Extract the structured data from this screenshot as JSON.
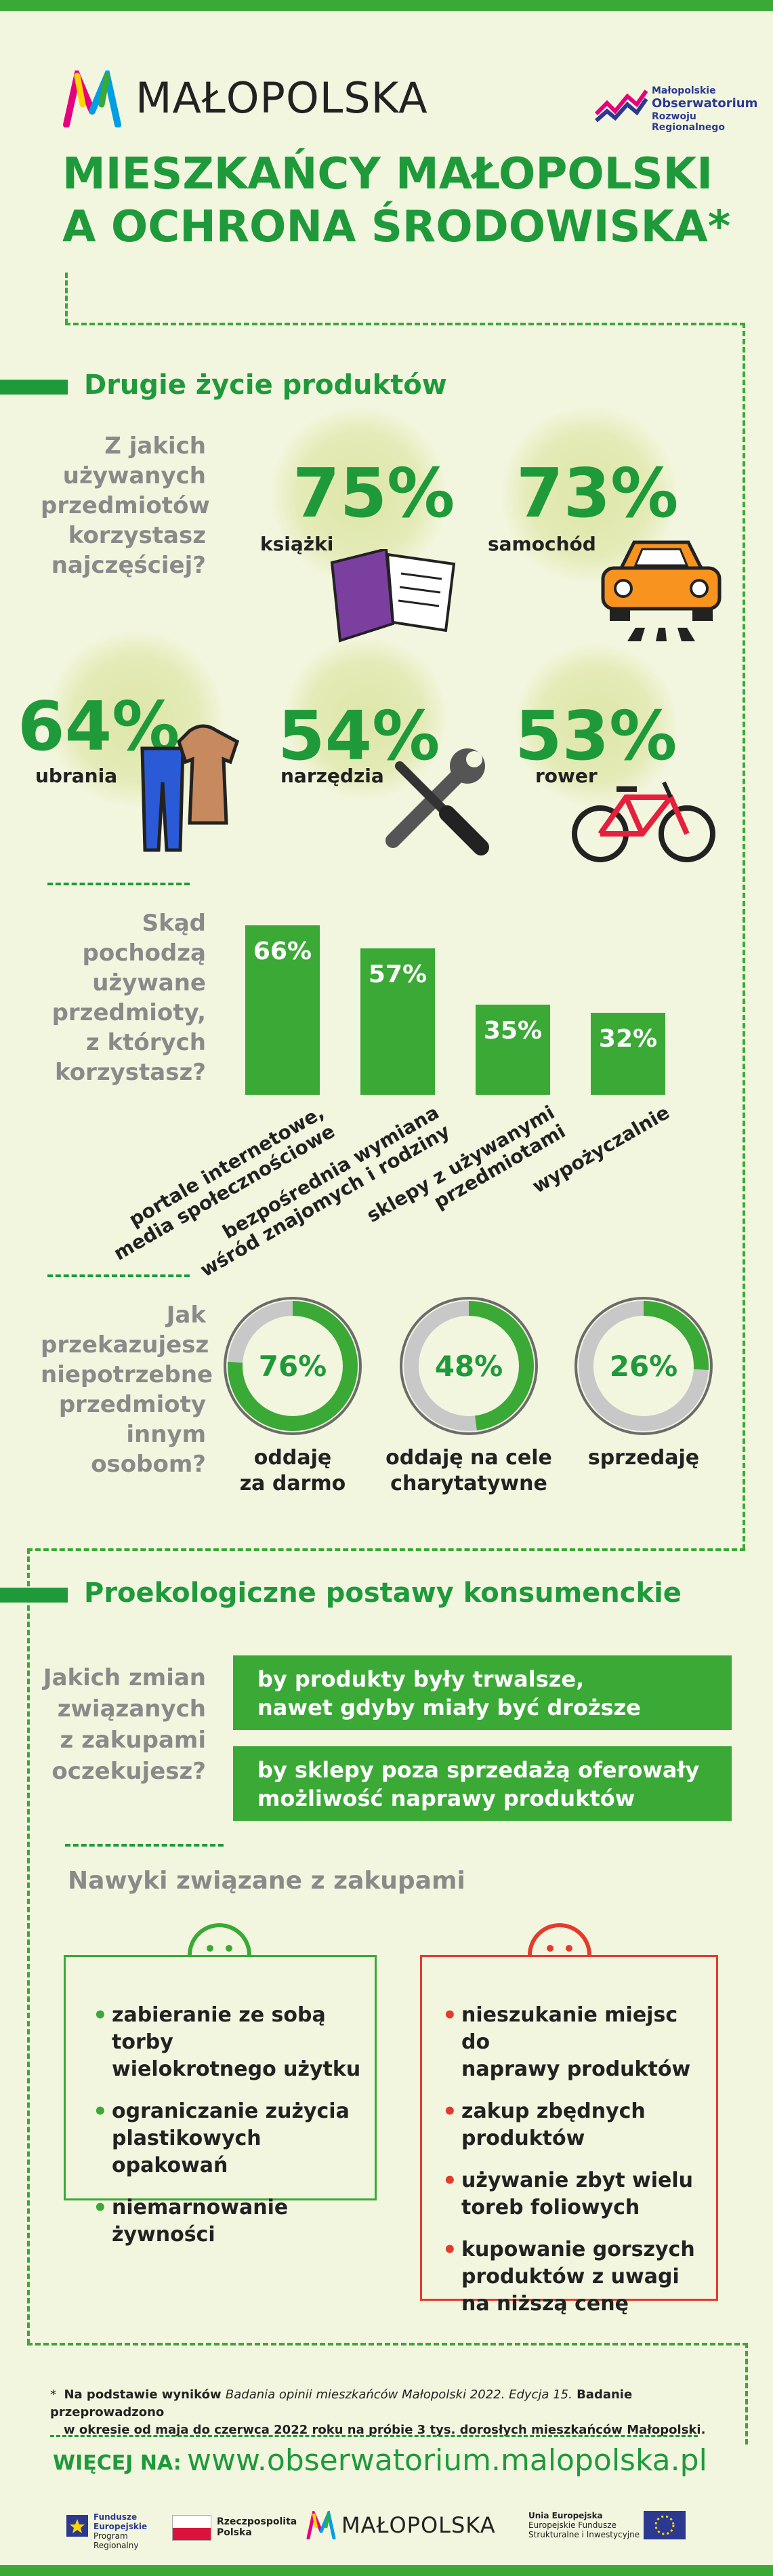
{
  "header": {
    "brand": "MAŁOPOLSKA",
    "observatory_lines": [
      "Małopolskie",
      "Obserwatorium",
      "Rozwoju Regionalnego"
    ],
    "title_line1": "MIESZKAŃCY MAŁOPOLSKI",
    "title_line2": "A  OCHRONA ŚRODOWISKA*"
  },
  "section1": {
    "heading": "Drugie życie produktów",
    "question1_lines": [
      "Z jakich",
      "używanych",
      "przedmiotów",
      "korzystasz",
      "najczęściej?"
    ],
    "items": [
      {
        "pct": "75%",
        "label": "książki",
        "icon": "book-icon"
      },
      {
        "pct": "73%",
        "label": "samochód",
        "icon": "car-icon"
      },
      {
        "pct": "64%",
        "label": "ubrania",
        "icon": "clothes-icon"
      },
      {
        "pct": "54%",
        "label": "narzędzia",
        "icon": "tools-icon"
      },
      {
        "pct": "53%",
        "label": "rower",
        "icon": "bicycle-icon"
      }
    ],
    "question2_lines": [
      "Skąd",
      "pochodzą",
      "używane",
      "przedmioty,",
      "z których",
      "korzystasz?"
    ],
    "question3_lines": [
      "Jak",
      "przekazujesz",
      "niepotrzebne",
      "przedmioty",
      "innym",
      "osobom?"
    ]
  },
  "chart_data": [
    {
      "type": "bar",
      "categories": [
        "portale internetowe, media społecznościowe",
        "bezpośrednia wymiana wśród znajomych i rodziny",
        "sklepy z używanymi przedmiotami",
        "wypożyczalnie"
      ],
      "values": [
        66,
        57,
        35,
        32
      ],
      "value_labels": [
        "66%",
        "57%",
        "35%",
        "32%"
      ],
      "label_lines": [
        [
          "portale internetowe,",
          "media społecznościowe"
        ],
        [
          "bezpośrednia wymiana",
          "wśród znajomych i rodziny"
        ],
        [
          "sklepy z używanymi",
          "przedmiotami"
        ],
        [
          "wypożyczalnie"
        ]
      ]
    },
    {
      "type": "pie",
      "categories": [
        "oddaję za darmo",
        "oddaję na cele charytatywne",
        "sprzedaję"
      ],
      "values": [
        76,
        48,
        26
      ],
      "value_labels": [
        "76%",
        "48%",
        "26%"
      ],
      "label_lines": [
        [
          "oddaję",
          "za darmo"
        ],
        [
          "oddaję na cele",
          "charytatywne"
        ],
        [
          "sprzedaję"
        ]
      ]
    }
  ],
  "section2": {
    "heading": "Proekologiczne postawy konsumenckie",
    "question_lines": [
      "Jakich zmian",
      "związanych",
      "z zakupami",
      "oczekujesz?"
    ],
    "box1_lines": [
      "by produkty były trwalsze,",
      "nawet gdyby miały być droższe"
    ],
    "box2_lines": [
      "by sklepy poza sprzedażą oferowały",
      "możliwość naprawy produktów"
    ],
    "habits_heading": "Nawyki  związane z zakupami",
    "good": [
      [
        "zabieranie ze sobą torby",
        "wielokrotnego użytku"
      ],
      [
        "ograniczanie zużycia",
        "plastikowych opakowań"
      ],
      [
        "niemarnowanie",
        "żywności"
      ]
    ],
    "bad": [
      [
        "nieszukanie miejsc do",
        "naprawy produktów"
      ],
      [
        "zakup zbędnych",
        "produktów"
      ],
      [
        "używanie zbyt wielu",
        "toreb foliowych"
      ],
      [
        "kupowanie gorszych",
        "produktów z uwagi",
        "na niższą cenę"
      ]
    ]
  },
  "footer": {
    "note_star": "*",
    "note_a": "Na podstawie wyników ",
    "note_italic": "Badania opinii mieszkańców Małopolski 2022. Edycja 15.",
    "note_b": " Badanie przeprowadzono",
    "note_line2": "w okresie od maja do czerwca 2022 roku na próbie 3 tys. dorosłych mieszkańców Małopolski.",
    "more_label": "WIĘCEJ NA:",
    "url": "www.obserwatorium.malopolska.pl",
    "logos": {
      "fe_lines": [
        "Fundusze",
        "Europejskie",
        "Program Regionalny"
      ],
      "rp_lines": [
        "Rzeczpospolita",
        "Polska"
      ],
      "mp": "MAŁOPOLSKA",
      "ue_lines": [
        "Unia Europejska",
        "Europejskie Fundusze",
        "Strukturalne i Inwestycyjne"
      ]
    }
  },
  "colors": {
    "green": "#1f9a3b",
    "light_green": "#3aa935",
    "red": "#e53b2b",
    "background": "#f3f6df"
  }
}
